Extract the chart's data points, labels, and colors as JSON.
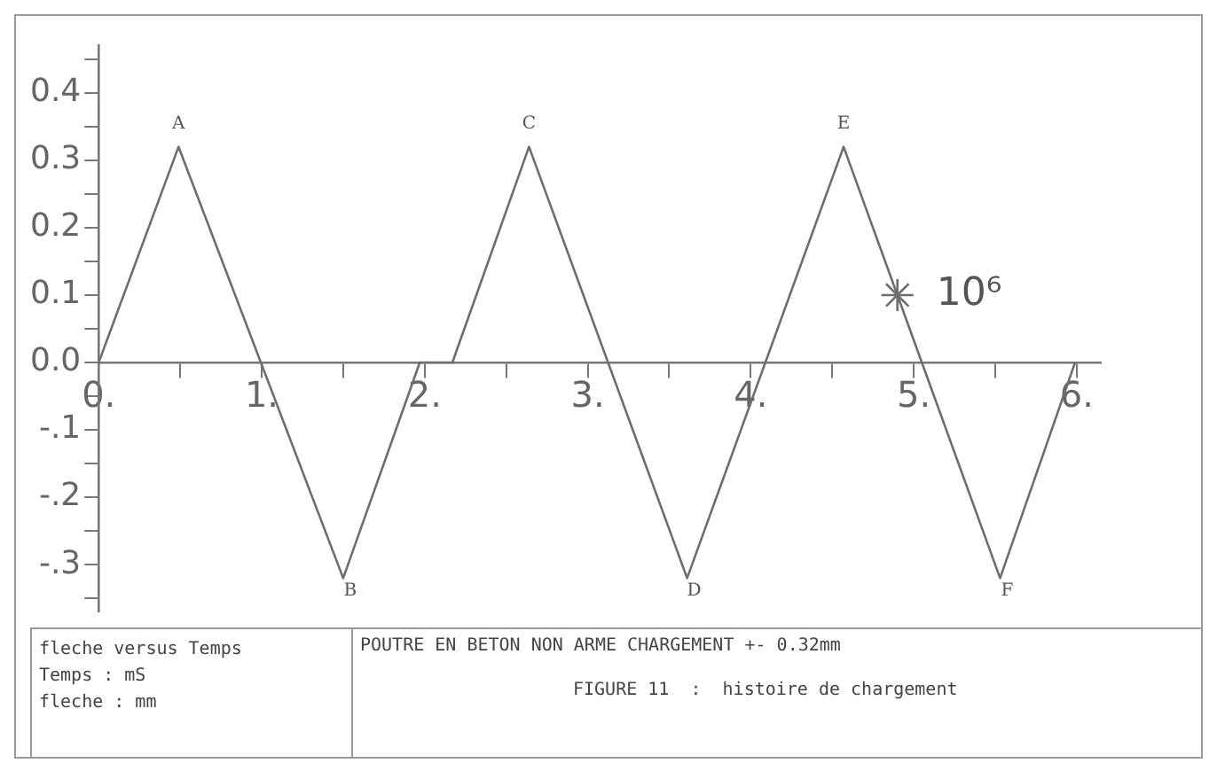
{
  "chart_data": {
    "type": "line",
    "title": "fleche versus Temps",
    "subtitle": "POUTRE EN BETON NON ARME CHARGEMENT +- 0.32mm",
    "x": [
      0,
      0.49,
      1.5,
      1.97,
      2.17,
      2.64,
      3.61,
      4.57,
      5.53,
      5.99
    ],
    "series": [
      {
        "color": "#6e6e6e",
        "values": [
          0,
          0.32,
          -0.32,
          0,
          0,
          0.32,
          -0.32,
          0.32,
          -0.32,
          0
        ]
      },
      {
        "type": "scatter",
        "marker": "cross",
        "color": "#6e6e6e",
        "x": [
          4.9
        ],
        "values": [
          0.1
        ]
      }
    ],
    "annotations": [
      {
        "text": "A",
        "x": 0.49,
        "y": 0.32
      },
      {
        "text": "B",
        "x": 1.5,
        "y": -0.32
      },
      {
        "text": "C",
        "x": 2.64,
        "y": 0.32
      },
      {
        "text": "D",
        "x": 3.61,
        "y": -0.32
      },
      {
        "text": "E",
        "x": 4.57,
        "y": 0.32
      },
      {
        "text": "F",
        "x": 5.53,
        "y": -0.32
      },
      {
        "text": "10⁶",
        "x": 4.9,
        "y": 0.1
      },
      "Temps : mS",
      "fleche : mm",
      "FIGURE 11  :  histoire de chargement"
    ],
    "xlim": [
      0,
      6.15
    ],
    "ylim": [
      -0.37,
      0.47
    ],
    "xticks": [
      {
        "value": 0,
        "label": "0."
      },
      {
        "value": 0.5,
        "label": null
      },
      {
        "value": 1,
        "label": "1."
      },
      {
        "value": 1.5,
        "label": null
      },
      {
        "value": 2,
        "label": "2."
      },
      {
        "value": 2.5,
        "label": null
      },
      {
        "value": 3,
        "label": "3."
      },
      {
        "value": 3.5,
        "label": null
      },
      {
        "value": 4,
        "label": "4."
      },
      {
        "value": 4.5,
        "label": null
      },
      {
        "value": 5,
        "label": "5."
      },
      {
        "value": 5.5,
        "label": null
      },
      {
        "value": 6,
        "label": "6."
      }
    ],
    "yticks": [
      {
        "value": -0.35,
        "label": null
      },
      {
        "value": -0.3,
        "label": "-.3"
      },
      {
        "value": -0.25,
        "label": null
      },
      {
        "value": -0.2,
        "label": "-.2"
      },
      {
        "value": -0.15,
        "label": null
      },
      {
        "value": -0.1,
        "label": "-.1"
      },
      {
        "value": -0.05,
        "label": null
      },
      {
        "value": 0,
        "label": "0.0"
      },
      {
        "value": 0.05,
        "label": null
      },
      {
        "value": 0.1,
        "label": "0.1"
      },
      {
        "value": 0.15,
        "label": null
      },
      {
        "value": 0.2,
        "label": "0.2"
      },
      {
        "value": 0.25,
        "label": null
      },
      {
        "value": 0.3,
        "label": "0.3"
      },
      {
        "value": 0.35,
        "label": null
      },
      {
        "value": 0.4,
        "label": "0.4"
      },
      {
        "value": 0.45,
        "label": null
      }
    ],
    "grid": false,
    "legend": false,
    "marker": "none",
    "line_style": "solid"
  }
}
